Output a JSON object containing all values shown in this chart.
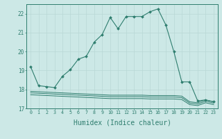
{
  "x": [
    0,
    1,
    2,
    3,
    4,
    5,
    6,
    7,
    8,
    9,
    10,
    11,
    12,
    13,
    14,
    15,
    16,
    17,
    18,
    19,
    20,
    21,
    22,
    23
  ],
  "main_line": [
    19.2,
    18.2,
    18.15,
    18.1,
    18.7,
    19.05,
    19.6,
    19.75,
    20.5,
    20.9,
    21.8,
    21.2,
    21.85,
    21.85,
    21.85,
    22.1,
    22.25,
    21.4,
    20.0,
    18.4,
    18.4,
    17.4,
    17.45,
    17.35
  ],
  "flat1": [
    17.9,
    17.88,
    17.86,
    17.84,
    17.82,
    17.8,
    17.78,
    17.76,
    17.74,
    17.72,
    17.7,
    17.7,
    17.7,
    17.7,
    17.7,
    17.68,
    17.68,
    17.68,
    17.68,
    17.65,
    17.35,
    17.3,
    17.45,
    17.35
  ],
  "flat2": [
    17.82,
    17.8,
    17.78,
    17.76,
    17.74,
    17.72,
    17.7,
    17.68,
    17.66,
    17.64,
    17.62,
    17.62,
    17.62,
    17.62,
    17.62,
    17.6,
    17.6,
    17.6,
    17.6,
    17.57,
    17.28,
    17.23,
    17.38,
    17.28
  ],
  "flat3": [
    17.72,
    17.7,
    17.68,
    17.66,
    17.64,
    17.62,
    17.6,
    17.58,
    17.56,
    17.54,
    17.52,
    17.52,
    17.52,
    17.52,
    17.52,
    17.5,
    17.5,
    17.5,
    17.5,
    17.47,
    17.2,
    17.15,
    17.3,
    17.2
  ],
  "color": "#2e7d6e",
  "bg_color": "#cce8e6",
  "grid_color": "#b8d8d5",
  "ylim": [
    17.0,
    22.5
  ],
  "yticks": [
    17,
    18,
    19,
    20,
    21,
    22
  ],
  "xlim": [
    -0.5,
    23.5
  ],
  "xlabel": "Humidex (Indice chaleur)"
}
